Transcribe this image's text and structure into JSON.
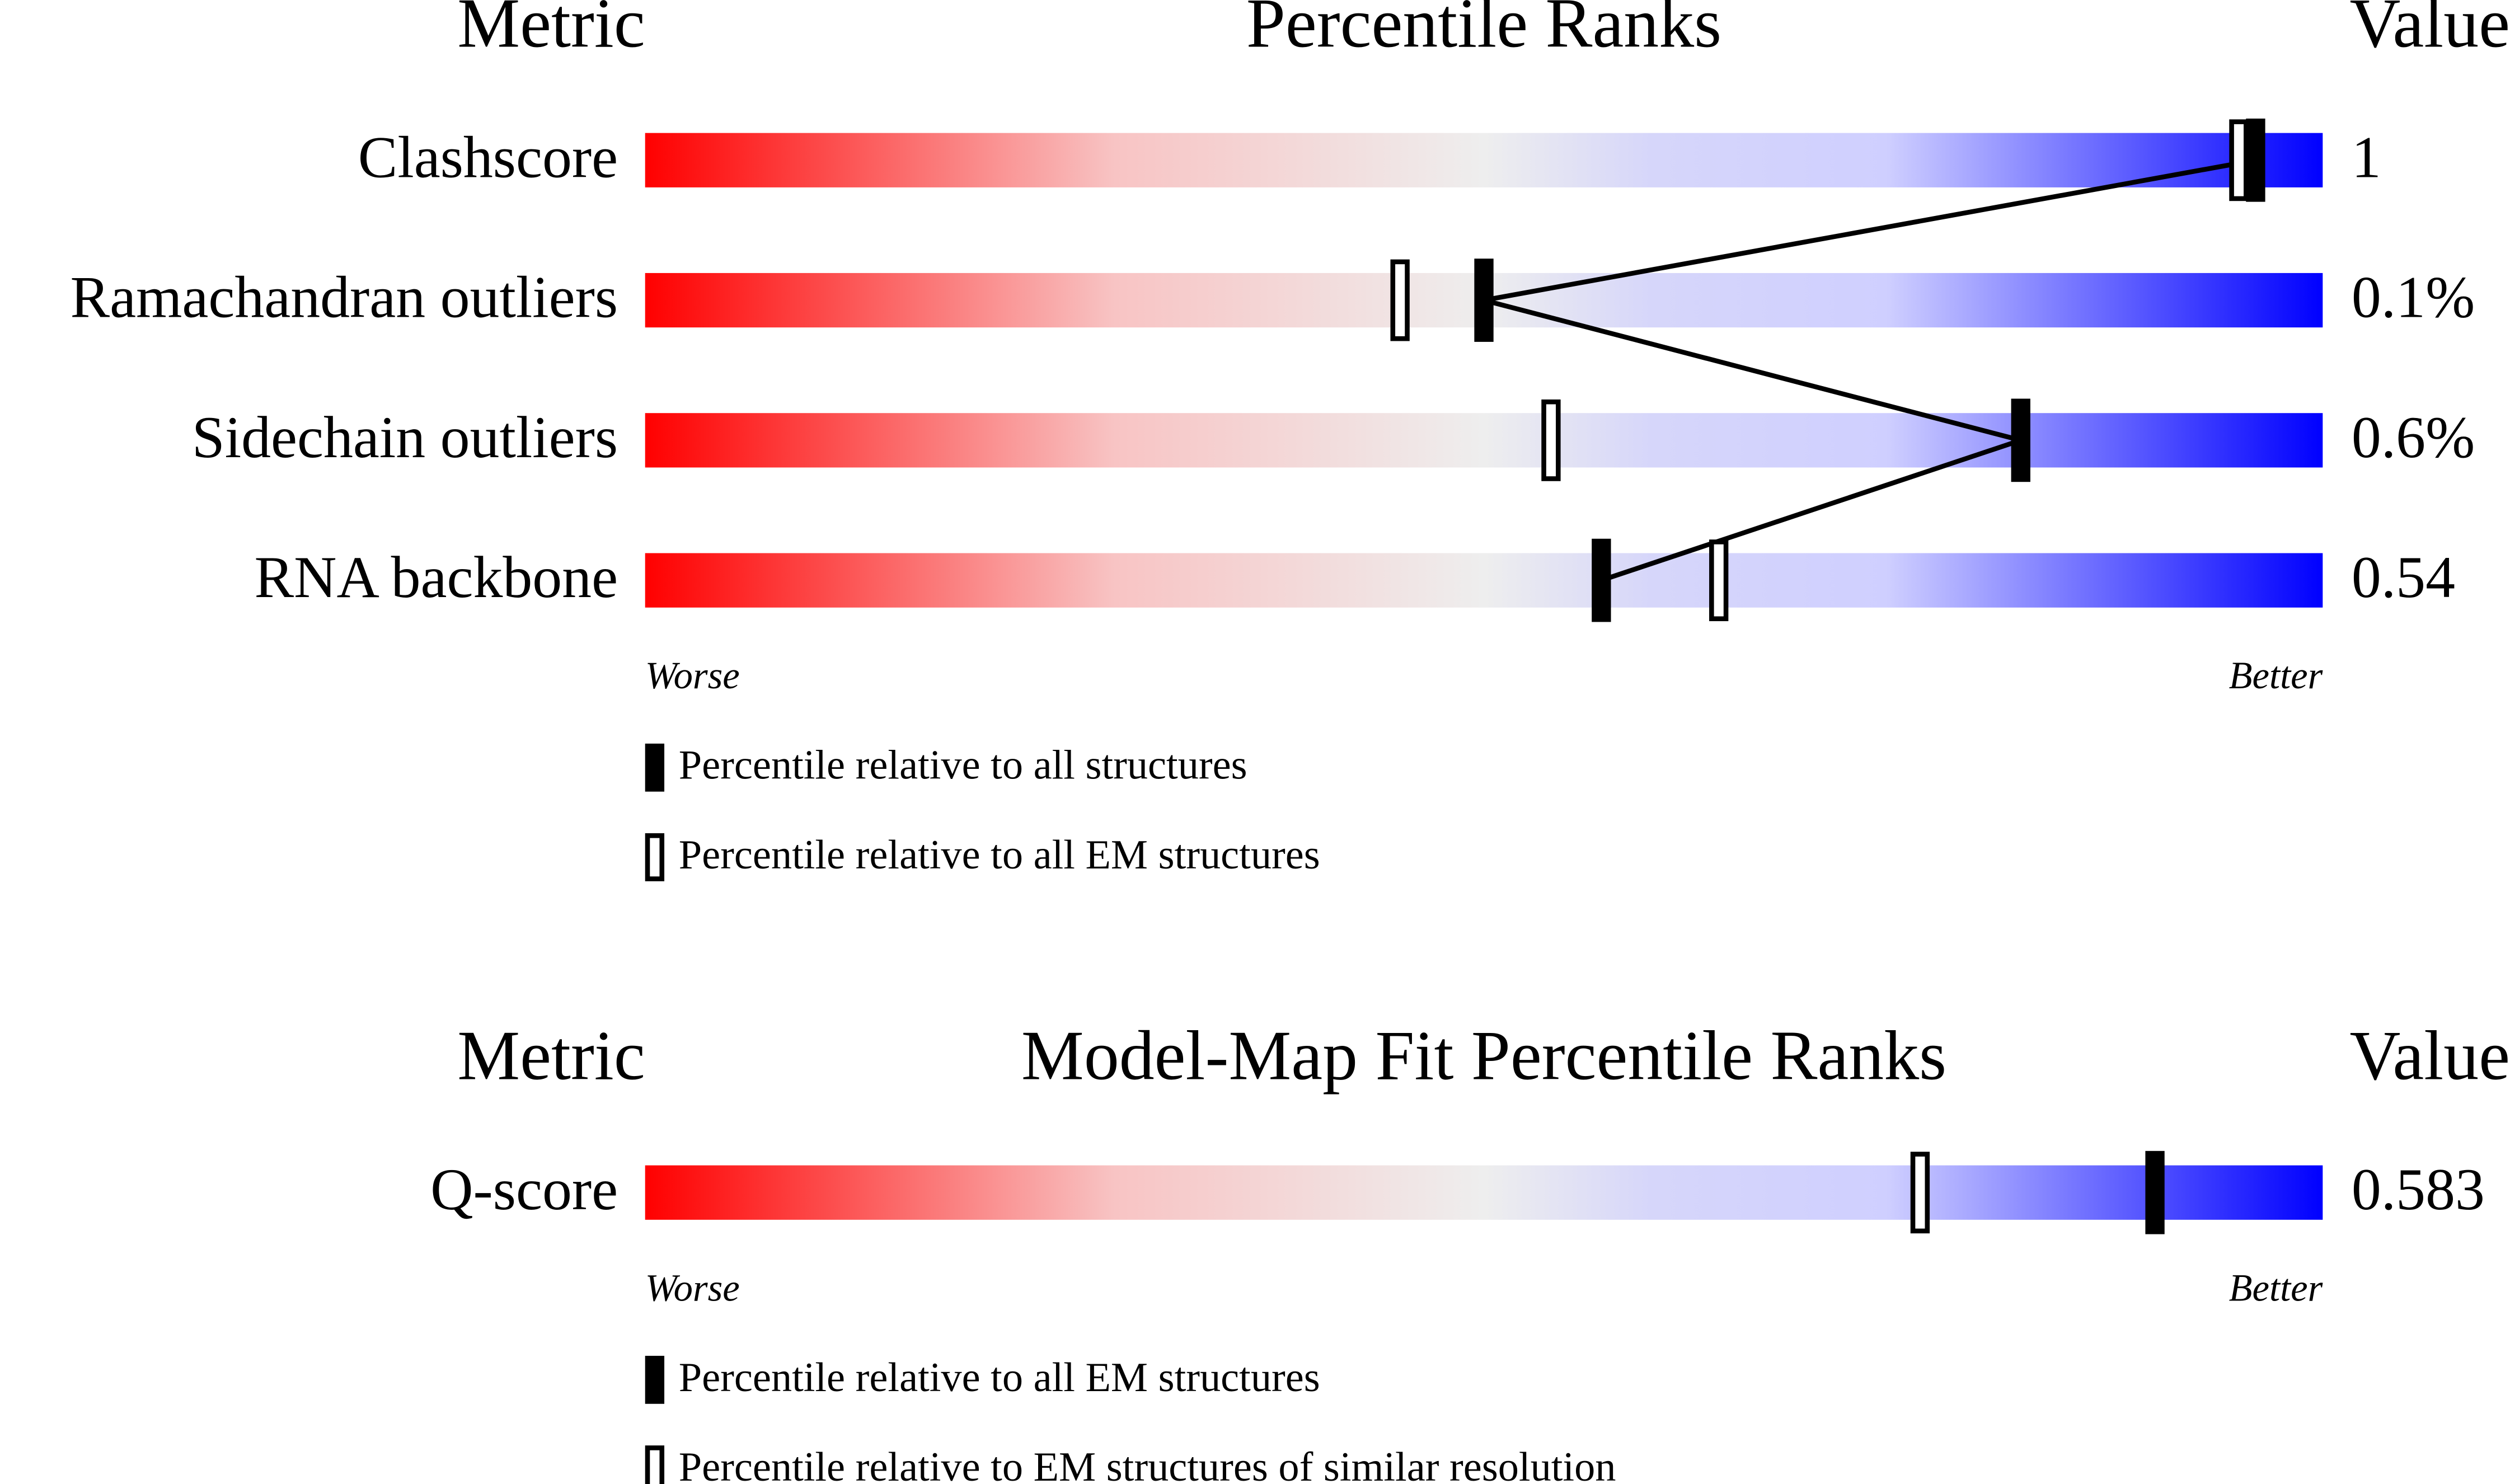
{
  "chart_data": [
    {
      "type": "percentile",
      "metric_header": "Metric",
      "title": "Percentile Ranks",
      "value_header": "Value",
      "categories": [
        "Clashscore",
        "Ramachandran outliers",
        "Sidechain outliers",
        "RNA backbone"
      ],
      "metric_values": [
        "1",
        "0.1%",
        "0.6%",
        "0.54"
      ],
      "series": [
        {
          "name": "Percentile relative to all structures",
          "marker": "filled",
          "color": "#000000",
          "values": [
            96,
            50,
            82,
            57
          ]
        },
        {
          "name": "Percentile relative to all EM structures",
          "marker": "open",
          "color": "#000000",
          "values": [
            95,
            45,
            54,
            64
          ]
        }
      ],
      "xlim": [
        0,
        100
      ],
      "worse_label": "Worse",
      "better_label": "Better"
    },
    {
      "type": "percentile",
      "metric_header": "Metric",
      "title": "Model-Map Fit Percentile Ranks",
      "value_header": "Value",
      "categories": [
        "Q-score"
      ],
      "metric_values": [
        "0.583"
      ],
      "series": [
        {
          "name": "Percentile relative to all EM structures",
          "marker": "filled",
          "color": "#000000",
          "values": [
            90
          ]
        },
        {
          "name": "Percentile relative to EM structures of similar resolution",
          "marker": "open",
          "color": "#000000",
          "values": [
            76
          ]
        }
      ],
      "xlim": [
        0,
        100
      ],
      "worse_label": "Worse",
      "better_label": "Better"
    }
  ]
}
